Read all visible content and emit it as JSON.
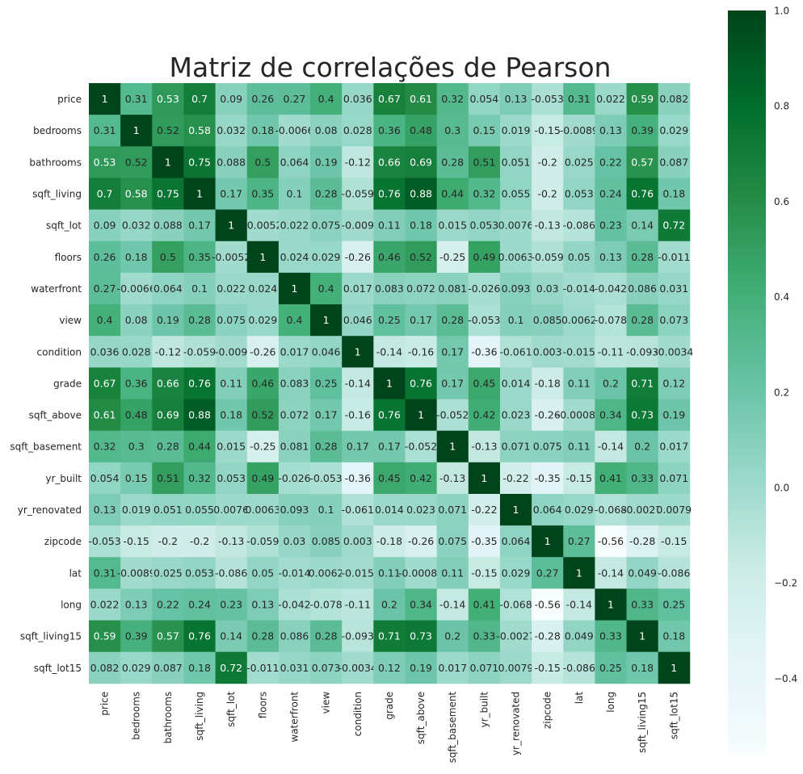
{
  "chart_data": {
    "type": "heatmap",
    "title": "Matriz de correlações de Pearson",
    "variables": [
      "price",
      "bedrooms",
      "bathrooms",
      "sqft_living",
      "sqft_lot",
      "floors",
      "waterfront",
      "view",
      "condition",
      "grade",
      "sqft_above",
      "sqft_basement",
      "yr_built",
      "yr_renovated",
      "zipcode",
      "lat",
      "long",
      "sqft_living15",
      "sqft_lot15"
    ],
    "labels": [
      [
        "1",
        "0.31",
        "0.53",
        "0.7",
        "0.09",
        "0.26",
        "0.27",
        "0.4",
        "0.036",
        "0.67",
        "0.61",
        "0.32",
        "0.054",
        "0.13",
        "-0.053",
        "0.31",
        "0.022",
        "0.59",
        "0.082"
      ],
      [
        "0.31",
        "1",
        "0.52",
        "0.58",
        "0.032",
        "0.18",
        "-0.0066",
        "0.08",
        "0.028",
        "0.36",
        "0.48",
        "0.3",
        "0.15",
        "0.019",
        "-0.15",
        "-0.0089",
        "0.13",
        "0.39",
        "0.029"
      ],
      [
        "0.53",
        "0.52",
        "1",
        "0.75",
        "0.088",
        "0.5",
        "0.064",
        "0.19",
        "-0.12",
        "0.66",
        "0.69",
        "0.28",
        "0.51",
        "0.051",
        "-0.2",
        "0.025",
        "0.22",
        "0.57",
        "0.087"
      ],
      [
        "0.7",
        "0.58",
        "0.75",
        "1",
        "0.17",
        "0.35",
        "0.1",
        "0.28",
        "-0.059",
        "0.76",
        "0.88",
        "0.44",
        "0.32",
        "0.055",
        "-0.2",
        "0.053",
        "0.24",
        "0.76",
        "0.18"
      ],
      [
        "0.09",
        "0.032",
        "0.088",
        "0.17",
        "1",
        "-0.0052",
        "0.022",
        "0.075",
        "-0.009",
        "0.11",
        "0.18",
        "0.015",
        "0.053",
        "0.0076",
        "-0.13",
        "-0.086",
        "0.23",
        "0.14",
        "0.72"
      ],
      [
        "0.26",
        "0.18",
        "0.5",
        "0.35",
        "-0.0052",
        "1",
        "0.024",
        "0.029",
        "-0.26",
        "0.46",
        "0.52",
        "-0.25",
        "0.49",
        "0.0063",
        "-0.059",
        "0.05",
        "0.13",
        "0.28",
        "-0.011"
      ],
      [
        "0.27",
        "-0.0066",
        "0.064",
        "0.1",
        "0.022",
        "0.024",
        "1",
        "0.4",
        "0.017",
        "0.083",
        "0.072",
        "0.081",
        "-0.026",
        "0.093",
        "0.03",
        "-0.014",
        "-0.042",
        "0.086",
        "0.031"
      ],
      [
        "0.4",
        "0.08",
        "0.19",
        "0.28",
        "0.075",
        "0.029",
        "0.4",
        "1",
        "0.046",
        "0.25",
        "0.17",
        "0.28",
        "-0.053",
        "0.1",
        "0.085",
        "0.0062",
        "-0.078",
        "0.28",
        "0.073"
      ],
      [
        "0.036",
        "0.028",
        "-0.12",
        "-0.059",
        "-0.009",
        "-0.26",
        "0.017",
        "0.046",
        "1",
        "-0.14",
        "-0.16",
        "0.17",
        "-0.36",
        "-0.061",
        "0.003",
        "-0.015",
        "-0.11",
        "-0.093",
        "-0.0034"
      ],
      [
        "0.67",
        "0.36",
        "0.66",
        "0.76",
        "0.11",
        "0.46",
        "0.083",
        "0.25",
        "-0.14",
        "1",
        "0.76",
        "0.17",
        "0.45",
        "0.014",
        "-0.18",
        "0.11",
        "0.2",
        "0.71",
        "0.12"
      ],
      [
        "0.61",
        "0.48",
        "0.69",
        "0.88",
        "0.18",
        "0.52",
        "0.072",
        "0.17",
        "-0.16",
        "0.76",
        "1",
        "-0.052",
        "0.42",
        "0.023",
        "-0.26",
        "-0.00081",
        "0.34",
        "0.73",
        "0.19"
      ],
      [
        "0.32",
        "0.3",
        "0.28",
        "0.44",
        "0.015",
        "-0.25",
        "0.081",
        "0.28",
        "0.17",
        "0.17",
        "-0.052",
        "1",
        "-0.13",
        "0.071",
        "0.075",
        "0.11",
        "-0.14",
        "0.2",
        "0.017"
      ],
      [
        "0.054",
        "0.15",
        "0.51",
        "0.32",
        "0.053",
        "0.49",
        "-0.026",
        "-0.053",
        "-0.36",
        "0.45",
        "0.42",
        "-0.13",
        "1",
        "-0.22",
        "-0.35",
        "-0.15",
        "0.41",
        "0.33",
        "0.071"
      ],
      [
        "0.13",
        "0.019",
        "0.051",
        "0.055",
        "0.0076",
        "0.0063",
        "0.093",
        "0.1",
        "-0.061",
        "0.014",
        "0.023",
        "0.071",
        "-0.22",
        "1",
        "0.064",
        "0.029",
        "-0.068",
        "-0.0027",
        "0.0079"
      ],
      [
        "-0.053",
        "-0.15",
        "-0.2",
        "-0.2",
        "-0.13",
        "-0.059",
        "0.03",
        "0.085",
        "0.003",
        "-0.18",
        "-0.26",
        "0.075",
        "-0.35",
        "0.064",
        "1",
        "0.27",
        "-0.56",
        "-0.28",
        "-0.15"
      ],
      [
        "0.31",
        "-0.0089",
        "0.025",
        "0.053",
        "-0.086",
        "0.05",
        "-0.014",
        "0.0062",
        "-0.015",
        "0.11",
        "-0.00081",
        "0.11",
        "-0.15",
        "0.029",
        "0.27",
        "1",
        "-0.14",
        "0.049",
        "-0.086"
      ],
      [
        "0.022",
        "0.13",
        "0.22",
        "0.24",
        "0.23",
        "0.13",
        "-0.042",
        "-0.078",
        "-0.11",
        "0.2",
        "0.34",
        "-0.14",
        "0.41",
        "-0.068",
        "-0.56",
        "-0.14",
        "1",
        "0.33",
        "0.25"
      ],
      [
        "0.59",
        "0.39",
        "0.57",
        "0.76",
        "0.14",
        "0.28",
        "0.086",
        "0.28",
        "-0.093",
        "0.71",
        "0.73",
        "0.2",
        "0.33",
        "-0.0027",
        "-0.28",
        "0.049",
        "0.33",
        "1",
        "0.18"
      ],
      [
        "0.082",
        "0.029",
        "0.087",
        "0.18",
        "0.72",
        "-0.011",
        "0.031",
        "0.073",
        "-0.0034",
        "0.12",
        "0.19",
        "0.017",
        "0.071",
        "0.0079",
        "-0.15",
        "-0.086",
        "0.25",
        "0.18",
        "1"
      ]
    ],
    "colorbar": {
      "vmin": -0.56,
      "vmax": 1.0,
      "ticks": [
        "1.0",
        "0.8",
        "0.6",
        "0.4",
        "0.2",
        "0.0",
        "−0.2",
        "−0.4"
      ],
      "tick_values": [
        1.0,
        0.8,
        0.6,
        0.4,
        0.2,
        0.0,
        -0.2,
        -0.4
      ],
      "colormap": "BuGn",
      "color_stops": [
        "#f7fcfd",
        "#e5f5f9",
        "#ccece6",
        "#99d8c9",
        "#66c2a4",
        "#41ae76",
        "#238b45",
        "#006d2c",
        "#00441b"
      ]
    },
    "grid": false
  }
}
